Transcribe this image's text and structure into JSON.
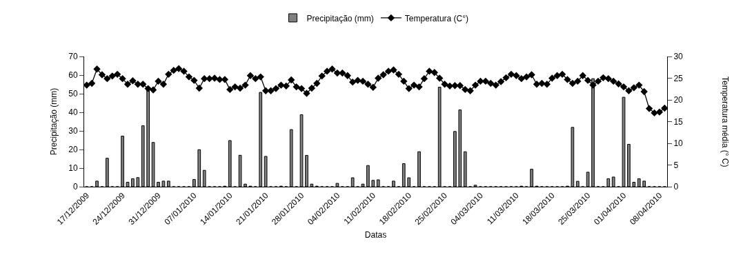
{
  "chart_data": {
    "type": "bar",
    "xlabel": "Datas",
    "ylabel": "Precipitação (mm)",
    "y2label": "Temperatura média (° C)",
    "categories": [
      "17/12/2009",
      null,
      null,
      null,
      null,
      null,
      null,
      "24/12/2009",
      null,
      null,
      null,
      null,
      null,
      null,
      "31/12/2009",
      null,
      null,
      null,
      null,
      null,
      null,
      "07/01/2010",
      null,
      null,
      null,
      null,
      null,
      null,
      "14/01/2010",
      null,
      null,
      null,
      null,
      null,
      null,
      "21/01/2010",
      null,
      null,
      null,
      null,
      null,
      null,
      "28/01/2010",
      null,
      null,
      null,
      null,
      null,
      null,
      "04/02/2010",
      null,
      null,
      null,
      null,
      null,
      null,
      "11/02/2010",
      null,
      null,
      null,
      null,
      null,
      null,
      "18/02/2010",
      null,
      null,
      null,
      null,
      null,
      null,
      "25/02/2010",
      null,
      null,
      null,
      null,
      null,
      null,
      "04/03/2010",
      null,
      null,
      null,
      null,
      null,
      null,
      "11/03/2010",
      null,
      null,
      null,
      null,
      null,
      null,
      "18/03/2010",
      null,
      null,
      null,
      null,
      null,
      null,
      "25/03/2010",
      null,
      null,
      null,
      null,
      null,
      null,
      "01/04/2010",
      null,
      null,
      null,
      null,
      null,
      null,
      "08/04/2010",
      null
    ],
    "series": [
      {
        "name": "Precipitação (mm)",
        "color": "#808080",
        "values": [
          0,
          0,
          3,
          0,
          15.3,
          0,
          0,
          27.2,
          2.4,
          4.3,
          4.9,
          32.8,
          52,
          23.8,
          2.4,
          3,
          3,
          0,
          0,
          0,
          0,
          3.9,
          19.9,
          8.8,
          0,
          0,
          0,
          0.3,
          24.8,
          0,
          16.9,
          1.4,
          0.3,
          0,
          50.7,
          16.3,
          0,
          0,
          0.3,
          0,
          30.7,
          0,
          38.7,
          16.8,
          1.4,
          0.3,
          0,
          0,
          0,
          1.8,
          0,
          0,
          4.8,
          0,
          1.4,
          11.4,
          3.4,
          3.7,
          0,
          0,
          3,
          0,
          12.4,
          4.8,
          0,
          18.8,
          0,
          0,
          0,
          53.5,
          0,
          0,
          29.7,
          41.3,
          18.8,
          0,
          0.8,
          0,
          0,
          0,
          0,
          0,
          0,
          0,
          0,
          0.3,
          0,
          9.4,
          0.3,
          0,
          0,
          0,
          0,
          0,
          0.3,
          31.9,
          2.9,
          0,
          7.8,
          58.1,
          0,
          0,
          4.3,
          5.2,
          0,
          48.1,
          22.8,
          2.4,
          4.3,
          3,
          0,
          0,
          0,
          0
        ]
      },
      {
        "name": "Temperatura (C°)",
        "type": "line",
        "axis": "y2",
        "color": "#000000",
        "marker": "diamond",
        "values": [
          23.4,
          23.8,
          27.1,
          25.8,
          24.9,
          25.5,
          25.9,
          24.9,
          23.6,
          24.4,
          23.6,
          23.6,
          22.6,
          22.3,
          24.3,
          23.6,
          25.9,
          26.8,
          27.2,
          26.6,
          25.3,
          24.5,
          22.7,
          24.9,
          24.9,
          25.0,
          24.7,
          24.7,
          22.4,
          23.0,
          22.7,
          23.4,
          25.6,
          24.9,
          25.3,
          22.1,
          22.1,
          22.6,
          23.4,
          23.2,
          24.6,
          23.0,
          22.6,
          21.5,
          22.7,
          23.8,
          25.5,
          26.6,
          27.1,
          26.2,
          26.2,
          25.6,
          24.1,
          24.5,
          24.3,
          23.6,
          22.9,
          25.0,
          25.8,
          26.6,
          26.9,
          25.9,
          24.3,
          22.6,
          23.4,
          23.0,
          24.9,
          26.6,
          26.3,
          25.0,
          23.6,
          23.2,
          23.3,
          23.3,
          22.4,
          22.1,
          23.4,
          24.3,
          24.3,
          23.8,
          23.4,
          24.2,
          25.1,
          25.9,
          25.6,
          24.9,
          25.3,
          25.8,
          23.6,
          23.8,
          23.6,
          25.0,
          25.6,
          25.9,
          24.7,
          23.8,
          24.3,
          25.6,
          24.5,
          23.4,
          24.3,
          25.1,
          24.9,
          24.3,
          23.7,
          23.0,
          22.1,
          22.8,
          23.4,
          21.9,
          18.0,
          17.0,
          17.2,
          18.1
        ]
      }
    ],
    "ylim": [
      0,
      70
    ],
    "yticks": [
      0,
      10,
      20,
      30,
      40,
      50,
      60,
      70
    ],
    "y2lim": [
      0,
      30
    ],
    "y2ticks": [
      0,
      5,
      10,
      15,
      20,
      25,
      30
    ],
    "legend": "top"
  }
}
